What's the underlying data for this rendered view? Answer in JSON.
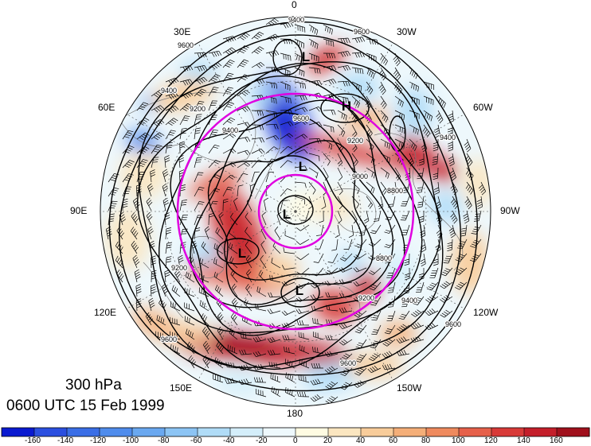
{
  "figure": {
    "level_label": "300 hPa",
    "time_label": "0600 UTC 15 Feb 1999"
  },
  "longitude_labels": [
    {
      "id": "lon-0",
      "text": "0"
    },
    {
      "id": "lon-30w",
      "text": "30W"
    },
    {
      "id": "lon-60w",
      "text": "60W"
    },
    {
      "id": "lon-90w",
      "text": "90W"
    },
    {
      "id": "lon-120w",
      "text": "120W"
    },
    {
      "id": "lon-150w",
      "text": "150W"
    },
    {
      "id": "lon-180",
      "text": "180"
    },
    {
      "id": "lon-150e",
      "text": "150E"
    },
    {
      "id": "lon-120e",
      "text": "120E"
    },
    {
      "id": "lon-90e",
      "text": "90E"
    },
    {
      "id": "lon-60e",
      "text": "60E"
    },
    {
      "id": "lon-30e",
      "text": "30E"
    }
  ],
  "pressure_centers": [
    "L",
    "H",
    "L",
    "L",
    "L",
    "L"
  ],
  "contour_labels": [
    "9400",
    "9600",
    "9400",
    "9200",
    "9600",
    "9400",
    "9200",
    "8800",
    "9000",
    "9600",
    "8800",
    "9200",
    "9400",
    "9400",
    "9600",
    "9200",
    "9600",
    "9600"
  ],
  "colorbar": {
    "bins": [
      -180,
      -160,
      -140,
      -120,
      -100,
      -80,
      -60,
      -40,
      -20,
      0,
      20,
      40,
      60,
      80,
      100,
      120,
      140,
      160,
      180
    ],
    "tick_labels": [
      "-160",
      "-140",
      "-120",
      "-100",
      "-80",
      "-60",
      "-40",
      "-20",
      "0",
      "20",
      "40",
      "60",
      "80",
      "100",
      "120",
      "140",
      "160"
    ],
    "colors": [
      "#0a1ad0",
      "#2b4fe0",
      "#3a6ee6",
      "#4f8cec",
      "#6aa8f0",
      "#8cc4f4",
      "#b0dcf7",
      "#d4eefa",
      "#eef8fc",
      "#fffbe2",
      "#fbe6c0",
      "#f8cc9a",
      "#f4ae78",
      "#ef8a5e",
      "#e6604a",
      "#d83a38",
      "#c41e2a",
      "#a0101c"
    ]
  },
  "colors": {
    "ring": "#e000e0",
    "contour": "#000000",
    "anomaly_neg": "#3a6ee6",
    "anomaly_pos": "#d83a38"
  }
}
